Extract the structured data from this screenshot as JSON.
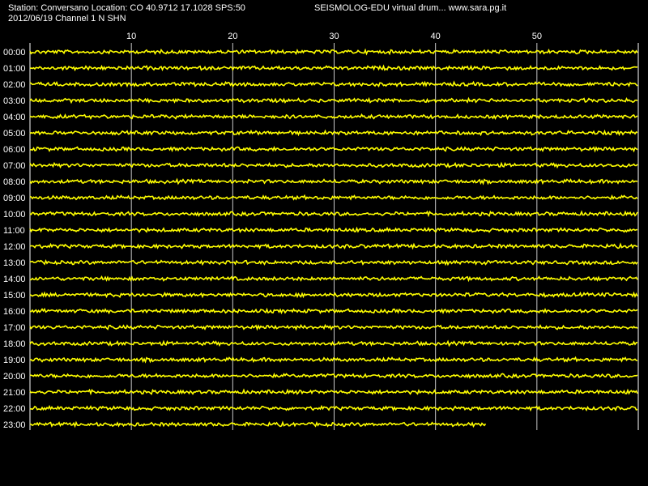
{
  "header": {
    "station_line": "Station: Conversano Location: CO 40.9712 17.1028 SPS:50",
    "date_line": "2012/06/19  Channel 1 N SHN",
    "software_line": "SEISMOLOG-EDU virtual drum... www.sara.pg.it"
  },
  "drum": {
    "minute_labels": [
      "10",
      "20",
      "30",
      "40",
      "50"
    ],
    "hour_labels": [
      "00:00",
      "01:00",
      "02:00",
      "03:00",
      "04:00",
      "05:00",
      "06:00",
      "07:00",
      "08:00",
      "09:00",
      "10:00",
      "11:00",
      "12:00",
      "13:00",
      "14:00",
      "15:00",
      "16:00",
      "17:00",
      "18:00",
      "19:00",
      "20:00",
      "21:00",
      "22:00",
      "23:00"
    ],
    "minutes_per_line": 60,
    "last_line_recorded_minutes": 45,
    "colors": {
      "background": "#000000",
      "trace": "#ffff00",
      "grid": "#ffffff",
      "text": "#ffffff"
    }
  }
}
